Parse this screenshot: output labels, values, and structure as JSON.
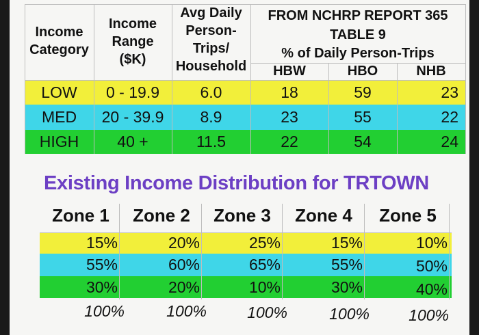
{
  "report": {
    "headers": {
      "income_category": "Income\nCategory",
      "income_range": "Income\nRange\n($K)",
      "avg_trips": "Avg Daily\nPerson-\nTrips/\nHousehold",
      "source_line1": "FROM NCHRP REPORT 365",
      "source_line2": "TABLE 9",
      "pct_caption": "% of Daily Person-Trips",
      "hbw": "HBW",
      "hbo": "HBO",
      "nhb": "NHB"
    },
    "rows": [
      {
        "category": "LOW",
        "range": "0 - 19.9",
        "trips": "6.0",
        "hbw": "18",
        "hbo": "59",
        "nhb": "23"
      },
      {
        "category": "MED",
        "range": "20 - 39.9",
        "trips": "8.9",
        "hbw": "23",
        "hbo": "55",
        "nhb": "22"
      },
      {
        "category": "HIGH",
        "range": "40 +",
        "trips": "11.5",
        "hbw": "22",
        "hbo": "54",
        "nhb": "24"
      }
    ]
  },
  "distribution": {
    "title": "Existing Income Distribution for TRTOWN",
    "zones": [
      "Zone 1",
      "Zone 2",
      "Zone 3",
      "Zone 4",
      "Zone 5"
    ],
    "rows": [
      [
        "15%",
        "20%",
        "25%",
        "15%",
        "10%"
      ],
      [
        "55%",
        "60%",
        "65%",
        "55%",
        "50%"
      ],
      [
        "30%",
        "20%",
        "10%",
        "30%",
        "40%"
      ],
      [
        "100%",
        "100%",
        "100%",
        "100%",
        "100%"
      ]
    ]
  },
  "colors": {
    "yellow": "#f2ef3a",
    "cyan": "#3fd6e8",
    "green": "#22cf32",
    "title_purple": "#6c3fc4"
  }
}
